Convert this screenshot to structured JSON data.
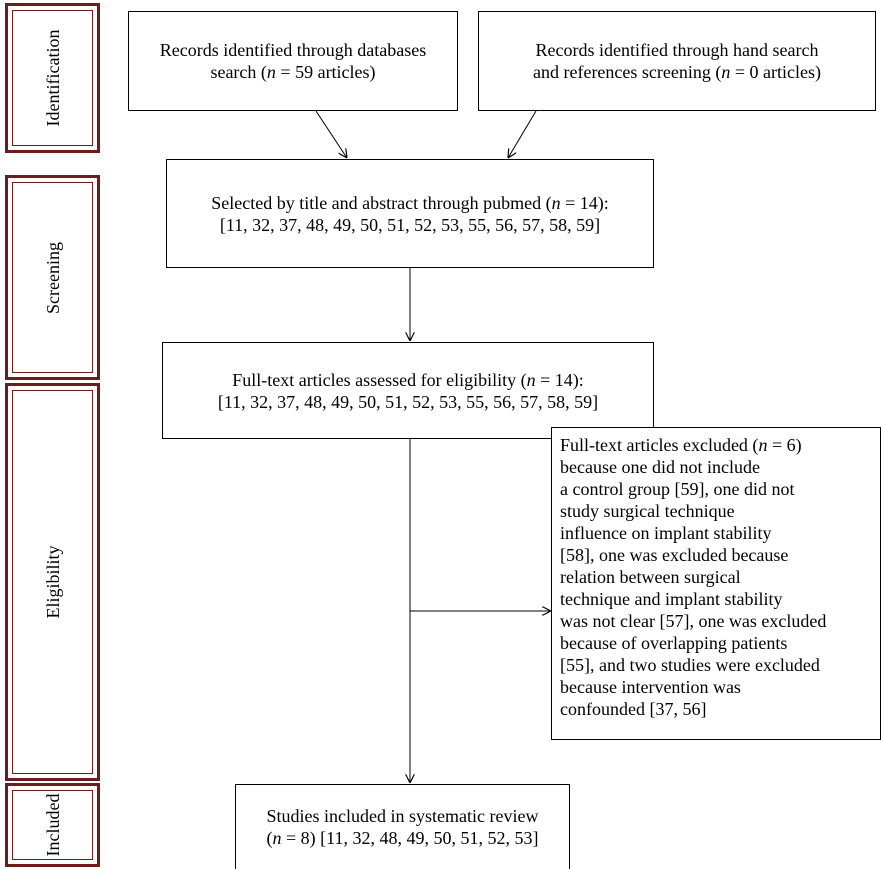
{
  "phases": [
    {
      "id": "identification",
      "label": "Identification"
    },
    {
      "id": "screening",
      "label": "Screening"
    },
    {
      "id": "eligibility",
      "label": "Eligibility"
    },
    {
      "id": "included",
      "label": "Included"
    }
  ],
  "boxes": {
    "db_search": {
      "lines": [
        "Records identified through databases",
        "search (n = 59 articles)"
      ]
    },
    "hand_search": {
      "lines": [
        "Records identified through hand search",
        "and references screening (n = 0 articles)"
      ]
    },
    "screened": {
      "lines": [
        "Selected by title and abstract through pubmed (n = 14):",
        "[11, 32, 37, 48, 49, 50, 51, 52, 53, 55, 56, 57, 58, 59]"
      ]
    },
    "eligible": {
      "lines": [
        "Full-text articles assessed for eligibility (n = 14):",
        "[11, 32, 37, 48, 49, 50, 51, 52, 53, 55, 56, 57, 58, 59]"
      ]
    },
    "excluded": {
      "lines": [
        "Full-text articles excluded (n = 6)",
        "because one did not include",
        "a control group [59], one did not",
        "study surgical technique",
        "influence on implant stability",
        "[58], one was excluded because",
        "relation between surgical",
        "technique and implant stability",
        "was not clear [57], one was excluded",
        "because of overlapping patients",
        "[55], and two studies were excluded",
        "because intervention was",
        "confounded [37, 56]"
      ]
    },
    "included": {
      "lines": [
        "Studies included in systematic review",
        "(n = 8) [11, 32, 48, 49, 50, 51, 52, 53]"
      ]
    }
  }
}
